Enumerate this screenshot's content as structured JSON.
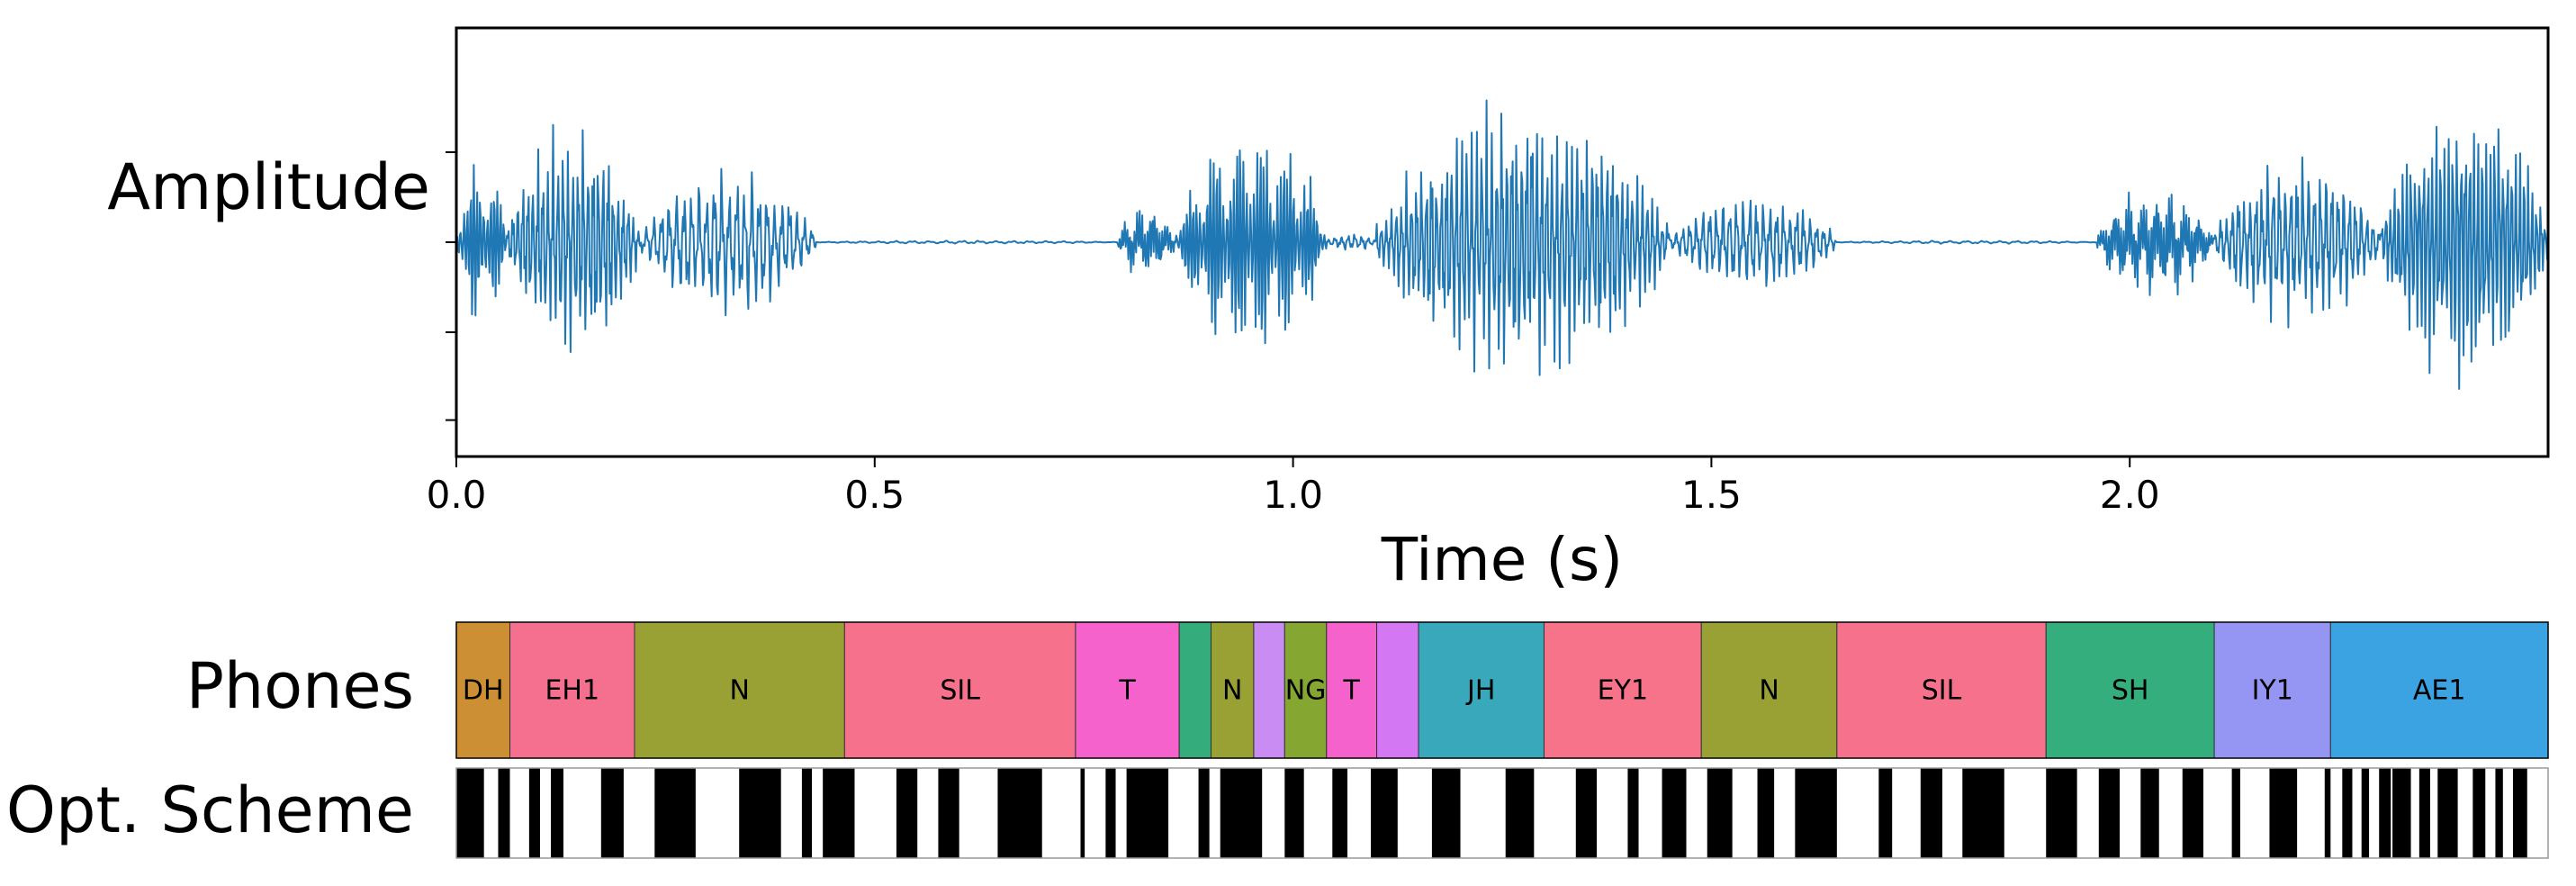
{
  "chart_data": [
    {
      "type": "line",
      "name": "waveform",
      "ylabel": "Amplitude",
      "xlabel": "Time (s)",
      "xlim": [
        0.0,
        2.5
      ],
      "ylim": [
        -1.0,
        1.0
      ],
      "xticks": [
        0.0,
        0.5,
        1.0,
        1.5,
        2.0
      ],
      "xtick_labels": [
        "0.0",
        "0.5",
        "1.0",
        "1.5",
        "2.0"
      ],
      "yticks": [
        0.42,
        0.0,
        -0.42,
        -0.83
      ],
      "color": "#1f77b4",
      "segments": [
        {
          "start": 0.0,
          "end": 0.06,
          "amp": 0.45,
          "period": 0.004
        },
        {
          "start": 0.06,
          "end": 0.22,
          "amp": 0.62,
          "period": 0.006
        },
        {
          "start": 0.22,
          "end": 0.43,
          "amp": 0.38,
          "period": 0.009
        },
        {
          "start": 0.43,
          "end": 0.79,
          "amp": 0.008,
          "period": 0.02
        },
        {
          "start": 0.79,
          "end": 0.86,
          "amp": 0.2,
          "period": 0.003
        },
        {
          "start": 0.86,
          "end": 1.04,
          "amp": 0.62,
          "period": 0.004
        },
        {
          "start": 1.04,
          "end": 1.1,
          "amp": 0.05,
          "period": 0.008
        },
        {
          "start": 1.1,
          "end": 1.45,
          "amp": 0.72,
          "period": 0.006
        },
        {
          "start": 1.45,
          "end": 1.65,
          "amp": 0.25,
          "period": 0.008
        },
        {
          "start": 1.65,
          "end": 1.96,
          "amp": 0.008,
          "period": 0.02
        },
        {
          "start": 1.96,
          "end": 2.1,
          "amp": 0.3,
          "period": 0.003
        },
        {
          "start": 2.1,
          "end": 2.3,
          "amp": 0.45,
          "period": 0.007
        },
        {
          "start": 2.3,
          "end": 2.5,
          "amp": 0.82,
          "period": 0.005
        }
      ]
    },
    {
      "type": "timeline",
      "name": "phones",
      "label": "Phones",
      "xlim": [
        0.0,
        2.5
      ],
      "segments": [
        {
          "label": "DH",
          "start": 0.0,
          "end": 0.064,
          "color": "#cc8f33"
        },
        {
          "label": "EH1",
          "start": 0.064,
          "end": 0.213,
          "color": "#f56f8f"
        },
        {
          "label": "N",
          "start": 0.213,
          "end": 0.464,
          "color": "#99a134"
        },
        {
          "label": "SIL",
          "start": 0.464,
          "end": 0.74,
          "color": "#f6728c"
        },
        {
          "label": "T",
          "start": 0.74,
          "end": 0.864,
          "color": "#f562cc"
        },
        {
          "label": "",
          "start": 0.864,
          "end": 0.902,
          "color": "#34ac7b"
        },
        {
          "label": "N",
          "start": 0.902,
          "end": 0.953,
          "color": "#99a134"
        },
        {
          "label": "",
          "start": 0.953,
          "end": 0.99,
          "color": "#c88cf3"
        },
        {
          "label": "NG",
          "start": 0.99,
          "end": 1.04,
          "color": "#85a731"
        },
        {
          "label": "T",
          "start": 1.04,
          "end": 1.1,
          "color": "#f562cc"
        },
        {
          "label": "",
          "start": 1.1,
          "end": 1.15,
          "color": "#d477f3"
        },
        {
          "label": "JH",
          "start": 1.15,
          "end": 1.3,
          "color": "#38a8ba"
        },
        {
          "label": "EY1",
          "start": 1.3,
          "end": 1.488,
          "color": "#f6738a"
        },
        {
          "label": "N",
          "start": 1.488,
          "end": 1.65,
          "color": "#99a134"
        },
        {
          "label": "SIL",
          "start": 1.65,
          "end": 1.9,
          "color": "#f6728c"
        },
        {
          "label": "SH",
          "start": 1.9,
          "end": 2.101,
          "color": "#35ae7d"
        },
        {
          "label": "IY1",
          "start": 2.101,
          "end": 2.24,
          "color": "#9595f3"
        },
        {
          "label": "AE1",
          "start": 2.24,
          "end": 2.5,
          "color": "#3ba3e1"
        }
      ]
    },
    {
      "type": "binary_strip",
      "name": "opt_scheme",
      "label": "Opt. Scheme",
      "xlim": [
        0.0,
        2.5
      ],
      "black_intervals": [
        [
          0.0,
          0.033
        ],
        [
          0.05,
          0.064
        ],
        [
          0.087,
          0.1
        ],
        [
          0.113,
          0.128
        ],
        [
          0.173,
          0.2
        ],
        [
          0.237,
          0.286
        ],
        [
          0.338,
          0.388
        ],
        [
          0.413,
          0.425
        ],
        [
          0.438,
          0.476
        ],
        [
          0.526,
          0.551
        ],
        [
          0.576,
          0.601
        ],
        [
          0.647,
          0.7
        ],
        [
          0.746,
          0.751
        ],
        [
          0.776,
          0.788
        ],
        [
          0.801,
          0.851
        ],
        [
          0.887,
          0.9
        ],
        [
          0.913,
          0.963
        ],
        [
          0.99,
          1.013
        ],
        [
          1.047,
          1.065
        ],
        [
          1.093,
          1.125
        ],
        [
          1.166,
          1.2
        ],
        [
          1.254,
          1.288
        ],
        [
          1.338,
          1.363
        ],
        [
          1.4,
          1.413
        ],
        [
          1.441,
          1.47
        ],
        [
          1.495,
          1.525
        ],
        [
          1.555,
          1.575
        ],
        [
          1.6,
          1.65
        ],
        [
          1.7,
          1.716
        ],
        [
          1.75,
          1.776
        ],
        [
          1.8,
          1.85
        ],
        [
          1.9,
          1.937
        ],
        [
          1.963,
          1.988
        ],
        [
          2.013,
          2.035
        ],
        [
          2.063,
          2.088
        ],
        [
          2.122,
          2.132
        ],
        [
          2.167,
          2.2
        ],
        [
          2.233,
          2.24
        ],
        [
          2.254,
          2.266
        ],
        [
          2.277,
          2.286
        ],
        [
          2.298,
          2.312
        ],
        [
          2.314,
          2.336
        ],
        [
          2.346,
          2.359
        ],
        [
          2.368,
          2.392
        ],
        [
          2.41,
          2.425
        ],
        [
          2.437,
          2.446
        ],
        [
          2.458,
          2.475
        ]
      ]
    }
  ]
}
